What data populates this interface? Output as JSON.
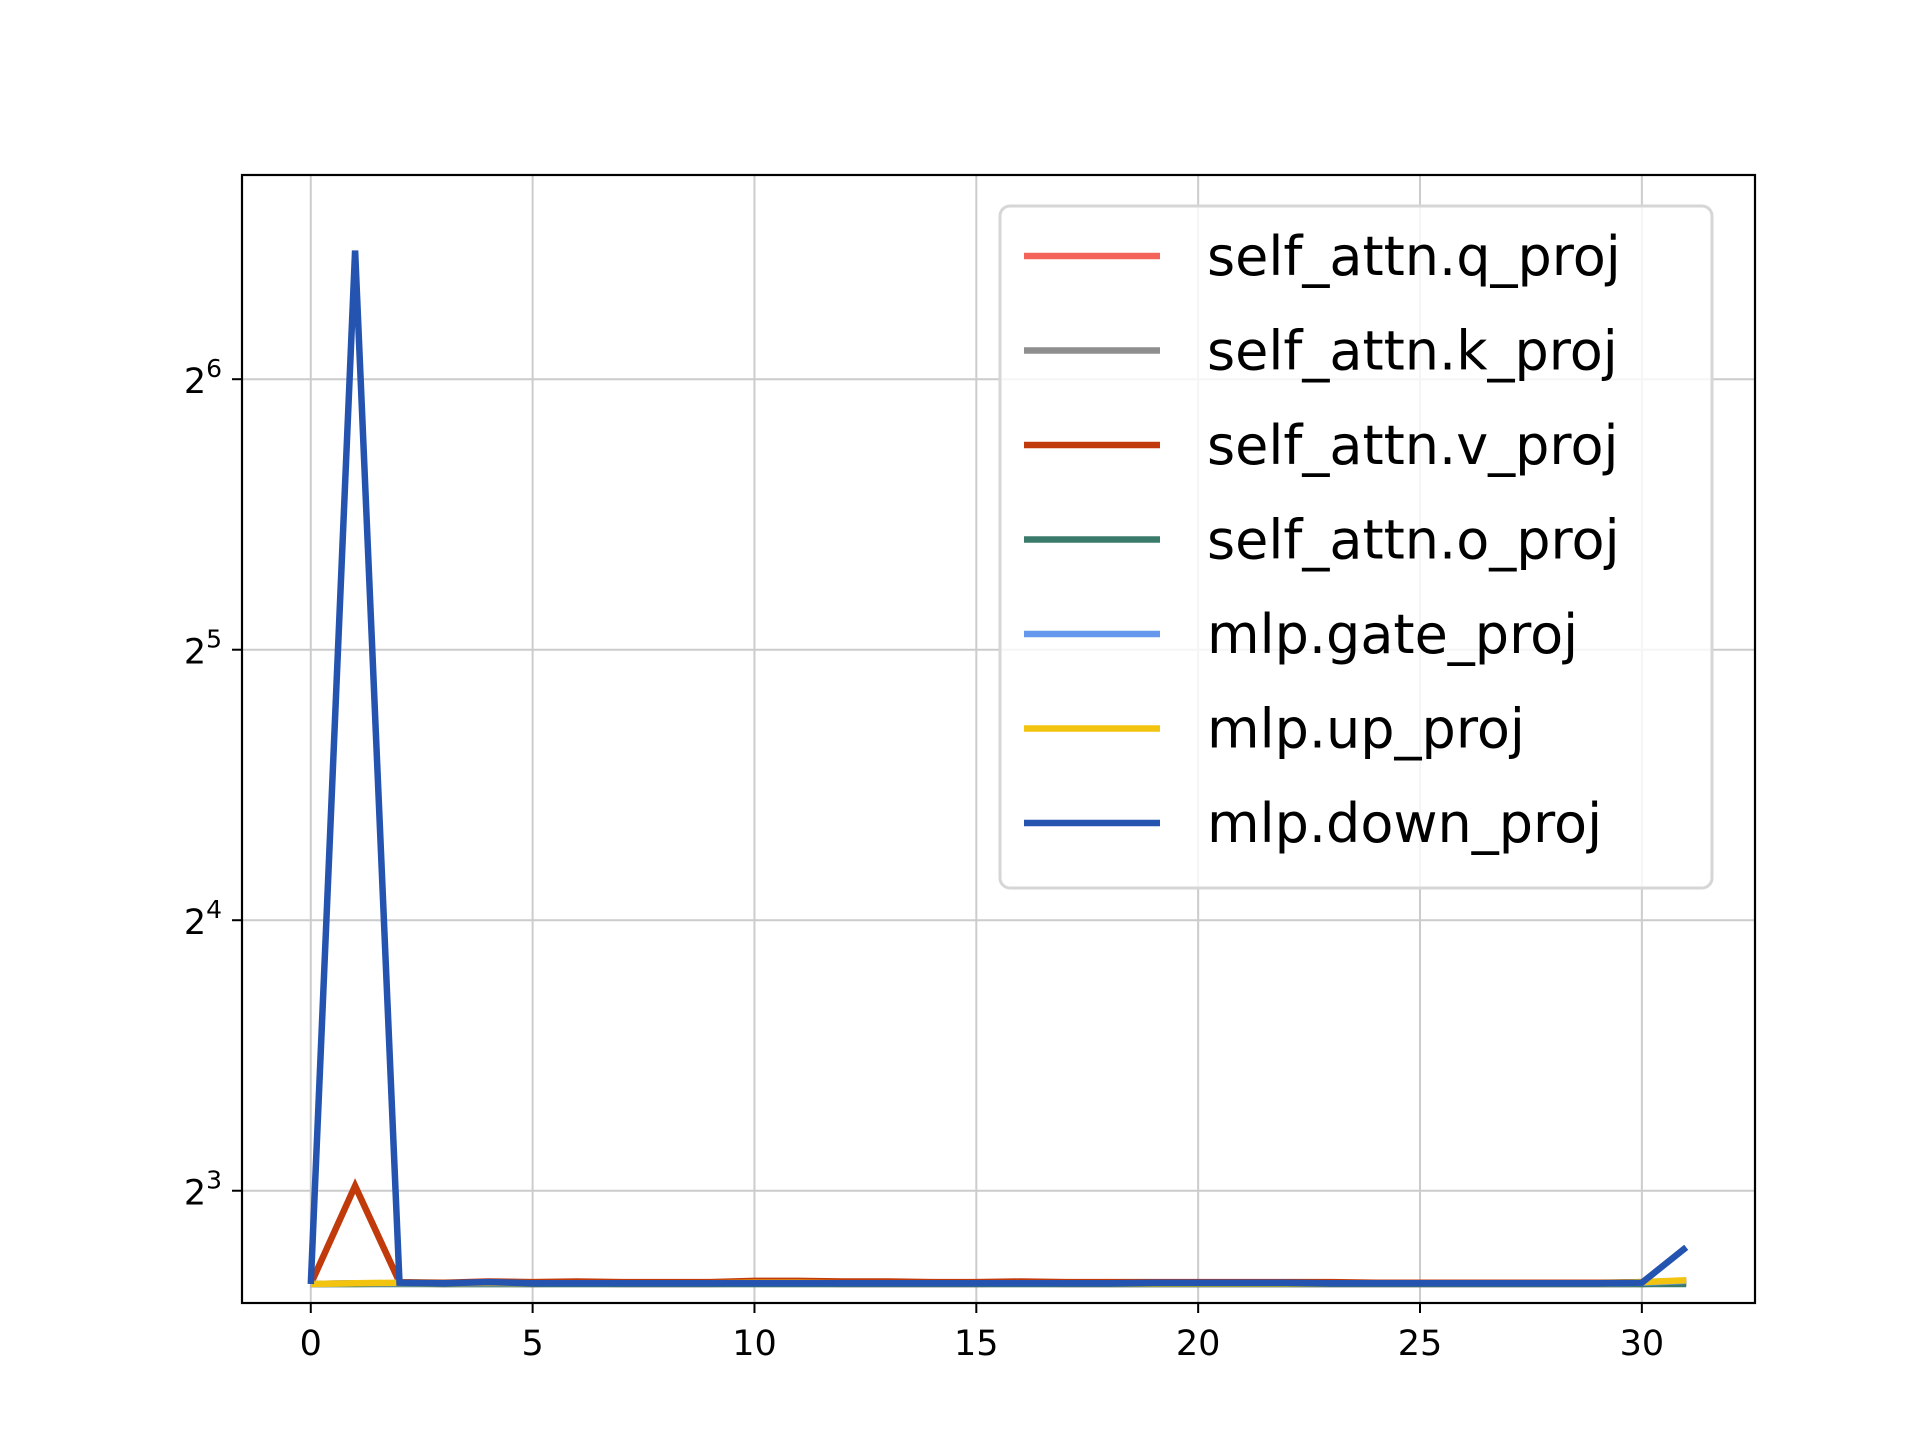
{
  "chart_data": {
    "type": "line",
    "title": "",
    "xlabel": "",
    "ylabel": "",
    "xlim": [
      -1.55,
      32.55
    ],
    "ylim": [
      6.0,
      108
    ],
    "yscale": "log2",
    "grid": true,
    "legend_position": "upper right",
    "x_ticks": [
      {
        "value": 0,
        "label": "0"
      },
      {
        "value": 5,
        "label": "5"
      },
      {
        "value": 10,
        "label": "10"
      },
      {
        "value": 15,
        "label": "15"
      },
      {
        "value": 20,
        "label": "20"
      },
      {
        "value": 25,
        "label": "25"
      },
      {
        "value": 30,
        "label": "30"
      }
    ],
    "y_ticks": [
      {
        "value": 8,
        "base": "2",
        "exp": "3"
      },
      {
        "value": 16,
        "base": "2",
        "exp": "4"
      },
      {
        "value": 32,
        "base": "2",
        "exp": "5"
      },
      {
        "value": 64,
        "base": "2",
        "exp": "6"
      }
    ],
    "x": [
      0,
      1,
      2,
      3,
      4,
      5,
      6,
      7,
      8,
      9,
      10,
      11,
      12,
      13,
      14,
      15,
      16,
      17,
      18,
      19,
      20,
      21,
      22,
      23,
      24,
      25,
      26,
      27,
      28,
      29,
      30,
      31
    ],
    "series": [
      {
        "name": "self_attn.q_proj",
        "color": "#f4645a",
        "values": [
          6.3,
          6.31,
          6.31,
          6.3,
          6.31,
          6.3,
          6.31,
          6.3,
          6.3,
          6.3,
          6.31,
          6.31,
          6.3,
          6.3,
          6.3,
          6.3,
          6.31,
          6.3,
          6.3,
          6.3,
          6.3,
          6.3,
          6.3,
          6.3,
          6.3,
          6.3,
          6.3,
          6.3,
          6.3,
          6.3,
          6.3,
          6.34
        ]
      },
      {
        "name": "self_attn.k_proj",
        "color": "#8e8e8e",
        "values": [
          6.3,
          6.3,
          6.31,
          6.3,
          6.3,
          6.3,
          6.3,
          6.3,
          6.3,
          6.3,
          6.3,
          6.3,
          6.3,
          6.3,
          6.3,
          6.3,
          6.3,
          6.3,
          6.3,
          6.3,
          6.3,
          6.3,
          6.3,
          6.3,
          6.3,
          6.3,
          6.3,
          6.3,
          6.3,
          6.3,
          6.3,
          6.32
        ]
      },
      {
        "name": "self_attn.v_proj",
        "color": "#c13a0b",
        "values": [
          6.3,
          8.1,
          6.33,
          6.32,
          6.34,
          6.33,
          6.34,
          6.33,
          6.33,
          6.33,
          6.35,
          6.35,
          6.34,
          6.34,
          6.33,
          6.33,
          6.34,
          6.33,
          6.33,
          6.33,
          6.33,
          6.33,
          6.33,
          6.33,
          6.32,
          6.32,
          6.32,
          6.32,
          6.32,
          6.32,
          6.33,
          6.35
        ]
      },
      {
        "name": "self_attn.o_proj",
        "color": "#3a7a6a",
        "values": [
          6.3,
          6.3,
          6.3,
          6.3,
          6.3,
          6.3,
          6.3,
          6.3,
          6.3,
          6.3,
          6.3,
          6.3,
          6.3,
          6.3,
          6.3,
          6.3,
          6.3,
          6.3,
          6.3,
          6.3,
          6.3,
          6.3,
          6.3,
          6.3,
          6.3,
          6.3,
          6.3,
          6.3,
          6.3,
          6.3,
          6.3,
          6.3
        ]
      },
      {
        "name": "mlp.gate_proj",
        "color": "#6699ee",
        "values": [
          6.3,
          6.31,
          6.31,
          6.31,
          6.31,
          6.31,
          6.31,
          6.31,
          6.31,
          6.31,
          6.31,
          6.31,
          6.31,
          6.31,
          6.31,
          6.31,
          6.31,
          6.31,
          6.31,
          6.31,
          6.31,
          6.31,
          6.31,
          6.31,
          6.31,
          6.31,
          6.31,
          6.31,
          6.31,
          6.31,
          6.32,
          6.35
        ]
      },
      {
        "name": "mlp.up_proj",
        "color": "#f2c40f",
        "values": [
          6.3,
          6.31,
          6.32,
          6.31,
          6.32,
          6.31,
          6.31,
          6.31,
          6.31,
          6.31,
          6.32,
          6.32,
          6.31,
          6.31,
          6.31,
          6.31,
          6.31,
          6.31,
          6.31,
          6.31,
          6.31,
          6.31,
          6.31,
          6.31,
          6.31,
          6.31,
          6.31,
          6.31,
          6.31,
          6.31,
          6.33,
          6.36
        ]
      },
      {
        "name": "mlp.down_proj",
        "color": "#2453b0",
        "values": [
          6.3,
          89,
          6.32,
          6.31,
          6.33,
          6.31,
          6.31,
          6.31,
          6.31,
          6.31,
          6.31,
          6.31,
          6.31,
          6.31,
          6.31,
          6.31,
          6.31,
          6.31,
          6.31,
          6.32,
          6.32,
          6.32,
          6.32,
          6.31,
          6.31,
          6.31,
          6.31,
          6.31,
          6.31,
          6.31,
          6.32,
          6.92
        ]
      }
    ]
  }
}
